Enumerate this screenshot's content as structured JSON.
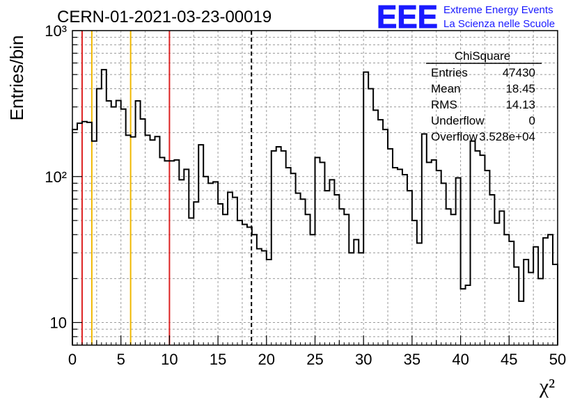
{
  "header": {
    "run_title": "CERN-01-2021-03-23-00019",
    "logo_text": "EEE",
    "logo_line1": "Extreme Energy Events",
    "logo_line2": "La Scienza nelle Scuole"
  },
  "stats_box": {
    "title": "ChiSquare",
    "rows": [
      {
        "label": "Entries",
        "value": "47430"
      },
      {
        "label": "Mean",
        "value": "18.45"
      },
      {
        "label": "RMS",
        "value": "14.13"
      },
      {
        "label": "Underflow",
        "value": "0"
      },
      {
        "label": "Overflow",
        "value": "3.528e+04"
      }
    ]
  },
  "chart_data": {
    "type": "histogram",
    "ylabel": "Entries/bin",
    "xlabel": "χ²",
    "xlim": [
      0,
      50
    ],
    "ylim": [
      7,
      1000
    ],
    "yscale": "log",
    "grid": true,
    "bin_width": 0.5,
    "x_ticks": [
      "0",
      "5",
      "10",
      "15",
      "20",
      "25",
      "30",
      "35",
      "40",
      "45",
      "50"
    ],
    "y_ticks": [
      {
        "value": 10,
        "label": "10"
      },
      {
        "value": 100,
        "label": "10²"
      },
      {
        "value": 1000,
        "label": "10³"
      }
    ],
    "values": [
      210,
      232,
      238,
      235,
      175,
      400,
      540,
      330,
      300,
      332,
      290,
      192,
      187,
      330,
      248,
      192,
      178,
      188,
      135,
      128,
      128,
      130,
      95,
      112,
      52,
      67,
      165,
      100,
      90,
      92,
      65,
      55,
      78,
      72,
      50,
      47,
      45,
      40,
      32,
      31,
      27,
      150,
      160,
      150,
      115,
      105,
      77,
      70,
      55,
      40,
      135,
      125,
      80,
      95,
      75,
      60,
      55,
      30,
      37,
      30,
      520,
      400,
      285,
      245,
      210,
      155,
      115,
      112,
      103,
      80,
      50,
      35,
      196,
      125,
      130,
      110,
      90,
      60,
      55,
      98,
      17,
      18,
      175,
      150,
      140,
      110,
      75,
      48,
      58,
      40,
      36,
      24,
      14,
      27,
      22,
      33,
      20,
      38,
      40,
      25
    ],
    "vertical_lines": [
      {
        "x": 1,
        "color": "#dd2222",
        "style": "solid"
      },
      {
        "x": 2,
        "color": "#f0b800",
        "style": "solid"
      },
      {
        "x": 6,
        "color": "#f0b800",
        "style": "solid"
      },
      {
        "x": 10,
        "color": "#dd2222",
        "style": "solid"
      },
      {
        "x": 18.45,
        "color": "#000000",
        "style": "dashed"
      }
    ]
  },
  "colors": {
    "logo_blue": "#1a1aff",
    "red_line": "#dd2222",
    "yellow_line": "#f0b800"
  }
}
